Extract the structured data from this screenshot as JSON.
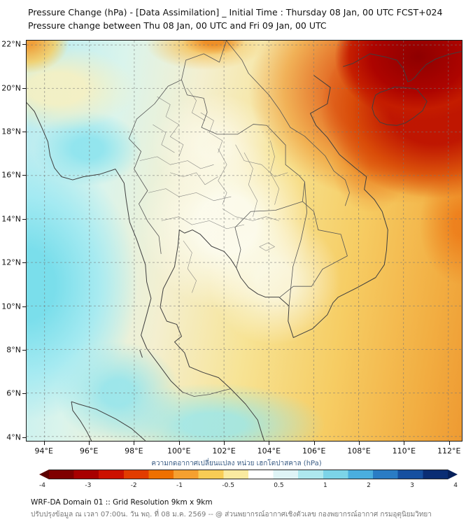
{
  "header": {
    "title_line1": "Pressure Change (hPa) - [Data Assimilation] _ Initial Time : Thursday 08 Jan, 00 UTC FCST+024",
    "title_line2": "Pressure change between Thu 08 Jan, 00 UTC and Fri 09 Jan, 00 UTC"
  },
  "chart_data": {
    "type": "heatmap",
    "title": "Pressure Change (hPa) - [Data Assimilation] _ Initial Time : Thursday 08 Jan, 00 UTC FCST+024",
    "subtitle": "Pressure change between Thu 08 Jan, 00 UTC and Fri 09 Jan, 00 UTC",
    "unit": "hPa",
    "x_axis": {
      "label_suffix": "°E",
      "ticks": [
        94,
        96,
        98,
        100,
        102,
        104,
        106,
        108,
        110,
        112
      ],
      "range": [
        93.2,
        112.6
      ]
    },
    "y_axis": {
      "label_suffix": "°N",
      "ticks": [
        22,
        20,
        18,
        16,
        14,
        12,
        10,
        8,
        6,
        4
      ],
      "range": [
        3.8,
        22.2
      ]
    },
    "grid": "dashed",
    "approx_field": [
      {
        "region": "north Vietnam / south China (top-right)",
        "pressure_change_hPa": -3.8
      },
      {
        "region": "Gulf of Tonkin / Hainan",
        "pressure_change_hPa": -3.0
      },
      {
        "region": "central Vietnam coast",
        "pressure_change_hPa": -2.2
      },
      {
        "region": "east / right edge south of 14N",
        "pressure_change_hPa": -1.5
      },
      {
        "region": "northeast Thailand / Laos",
        "pressure_change_hPa": -1.0
      },
      {
        "region": "top-left corner (west Myanmar)",
        "pressure_change_hPa": -2.0
      },
      {
        "region": "central Thailand (pale band)",
        "pressure_change_hPa": 0.0
      },
      {
        "region": "around 96E 18N (cyan patch)",
        "pressure_change_hPa": 1.0
      },
      {
        "region": "Andaman Sea / west-southwest (cyan)",
        "pressure_change_hPa": 1.3
      },
      {
        "region": "southern Thailand / lower Gulf (bottom-center)",
        "pressure_change_hPa": 0.6
      }
    ],
    "colorbar": {
      "title": "ความกดอากาศเปลี่ยนแปลง หน่วย เฮกโตปาสคาล (hPa)",
      "tick_labels": [
        "-4",
        "-3",
        "-2",
        "-1",
        "-0.5",
        "0.5",
        "1",
        "2",
        "3",
        "4"
      ],
      "segment_colors": [
        "#7f0000",
        "#a80000",
        "#cc1100",
        "#e23c00",
        "#ee7000",
        "#f5a030",
        "#f8cc55",
        "#faeaa0",
        "#ffffff",
        "#dff4f6",
        "#aee8ee",
        "#7cd4e8",
        "#4aaede",
        "#2a7cc4",
        "#1650a0",
        "#0a2d74"
      ],
      "arrow_left_color": "#5c0000",
      "arrow_right_color": "#06205a"
    }
  },
  "footer": {
    "line1": "WRF-DA Domain 01 :: Grid Resolution 9km x 9km",
    "line2": "ปรับปรุงข้อมูล ณ เวลา 07:00น. วัน พฤ. ที่ 08 ม.ค. 2569 -- @ ส่วนพยากรณ์อากาศเชิงตัวเลข กองพยากรณ์อากาศ กรมอุตุนิยมวิทยา"
  }
}
